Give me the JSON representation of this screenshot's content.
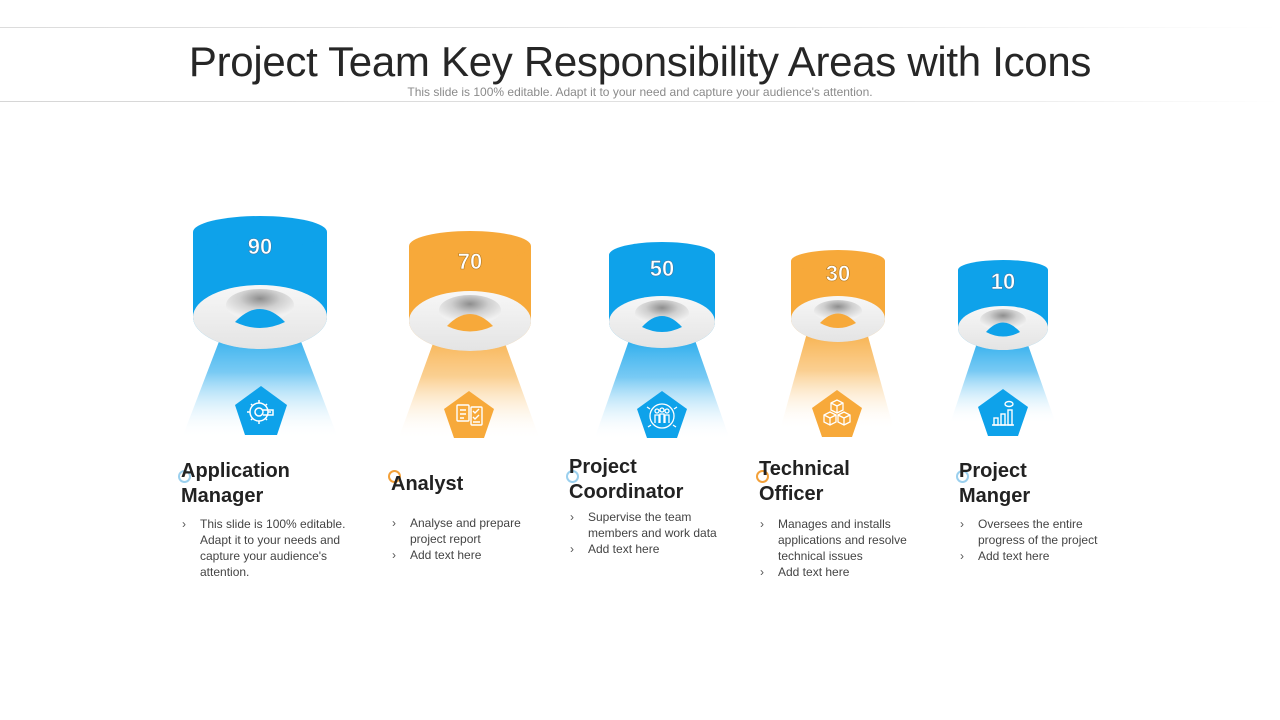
{
  "title": "Project Team Key Responsibility Areas with Icons",
  "subtitle": "This slide is 100% editable. Adapt it to your need and capture your audience's attention.",
  "colors": {
    "blue": "#0ea2ea",
    "orange": "#f7a93a",
    "blue_ring": "#9bd0ee",
    "orange_ring": "#f3a13a"
  },
  "roles": [
    {
      "value": "90",
      "icon": "gear-icon",
      "heading": [
        "Application",
        "Manager"
      ],
      "bullets": [
        "This slide is 100% editable. Adapt it to your needs and capture your audience's attention."
      ]
    },
    {
      "value": "70",
      "icon": "checklist-icon",
      "heading": [
        "Analyst"
      ],
      "bullets": [
        "Analyse and prepare project report",
        "Add text here"
      ]
    },
    {
      "value": "50",
      "icon": "team-icon",
      "heading": [
        "Project",
        "Coordinator"
      ],
      "bullets": [
        "Supervise the team members and work data",
        "Add text here"
      ]
    },
    {
      "value": "30",
      "icon": "boxes-icon",
      "heading": [
        "Technical",
        "Officer"
      ],
      "bullets": [
        "Manages and installs applications and resolve technical issues",
        "Add text here"
      ]
    },
    {
      "value": "10",
      "icon": "bar-chart-icon",
      "heading": [
        "Project",
        "Manger"
      ],
      "bullets": [
        "Oversees the entire progress of the project",
        "Add text here"
      ]
    }
  ]
}
